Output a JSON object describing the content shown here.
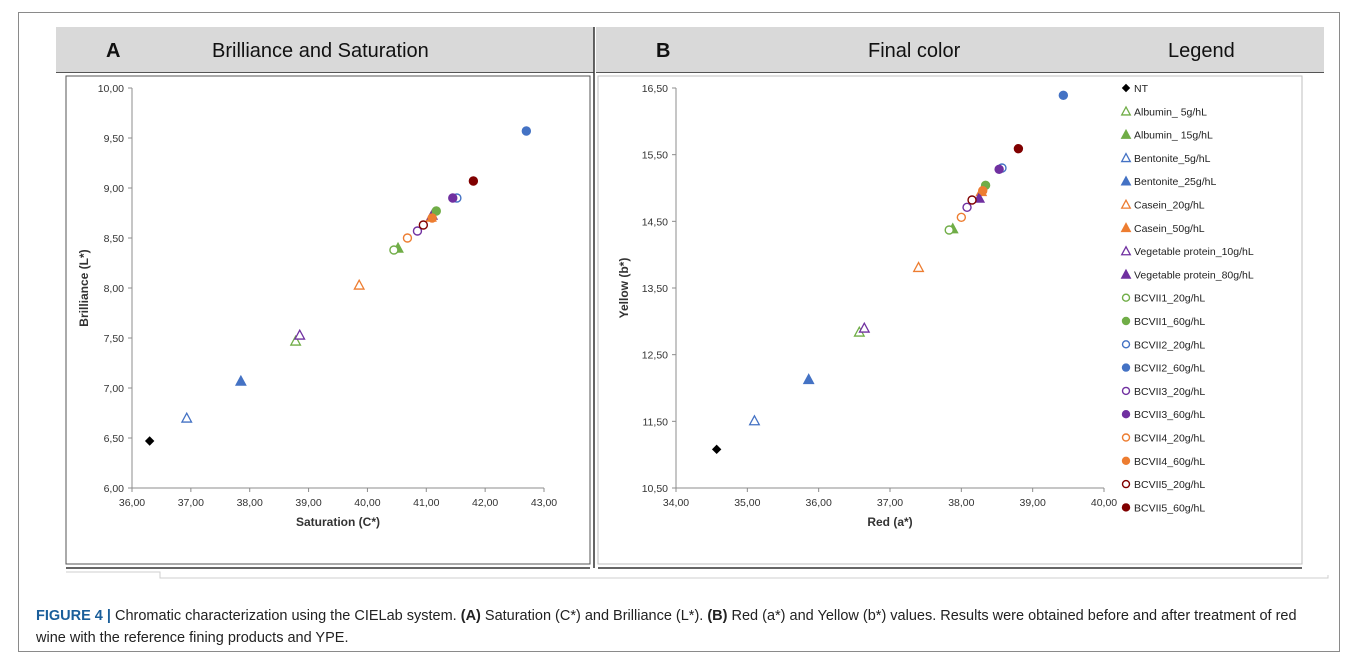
{
  "panel_a": {
    "letter": "A",
    "title": "Brilliance and Saturation"
  },
  "panel_b": {
    "letter": "B",
    "title": "Final color",
    "legend_title": "Legend"
  },
  "caption": {
    "label": "FIGURE 4 |",
    "text_1": " Chromatic characterization using the CIELab system. ",
    "a_ref": "(A)",
    "text_2": " Saturation (C*) and Brilliance (L*). ",
    "b_ref": "(B)",
    "text_3": " Red (a*) and Yellow (b*) values. Results were obtained before and after treatment of red wine with the reference fining products and YPE."
  },
  "colors": {
    "black": "#000000",
    "green": "#70ad47",
    "blue": "#4472c4",
    "orange": "#ed7d31",
    "purple": "#7030a0",
    "dark_red": "#800000",
    "header_bg": "#d9d9d9"
  },
  "chart_data": [
    {
      "type": "scatter",
      "panel": "A",
      "xlabel": "Saturation (C*)",
      "ylabel": "Brilliance (L*)",
      "xlim": [
        36,
        43
      ],
      "ylim": [
        6,
        10
      ],
      "xticks": [
        "36,00",
        "37,00",
        "38,00",
        "39,00",
        "40,00",
        "41,00",
        "42,00",
        "43,00"
      ],
      "yticks": [
        "6,00",
        "6,50",
        "7,00",
        "7,50",
        "8,00",
        "8,50",
        "9,00",
        "9,50",
        "10,00"
      ],
      "series": [
        {
          "name": "NT",
          "x": 36.3,
          "y": 6.47
        },
        {
          "name": "Albumin_ 5g/hL",
          "x": 38.78,
          "y": 7.47
        },
        {
          "name": "Albumin_ 15g/hL",
          "x": 40.52,
          "y": 8.4
        },
        {
          "name": "Bentonite_5g/hL",
          "x": 36.93,
          "y": 6.7
        },
        {
          "name": "Bentonite_25g/hL",
          "x": 37.85,
          "y": 7.07
        },
        {
          "name": "Casein_20g/hL",
          "x": 39.86,
          "y": 8.03
        },
        {
          "name": "Casein_50g/hL",
          "x": 41.08,
          "y": 8.71
        },
        {
          "name": "Vegetable protein_10g/hL",
          "x": 38.85,
          "y": 7.53
        },
        {
          "name": "Vegetable protein_80g/hL",
          "x": 41.1,
          "y": 8.73
        },
        {
          "name": "BCVII1_20g/hL",
          "x": 40.45,
          "y": 8.38
        },
        {
          "name": "BCVII1_60g/hL",
          "x": 41.17,
          "y": 8.77
        },
        {
          "name": "BCVII2_20g/hL",
          "x": 41.52,
          "y": 8.9
        },
        {
          "name": "BCVII2_60g/hL",
          "x": 42.7,
          "y": 9.57
        },
        {
          "name": "BCVII3_20g/hL",
          "x": 40.85,
          "y": 8.57
        },
        {
          "name": "BCVII3_60g/hL",
          "x": 41.45,
          "y": 8.9
        },
        {
          "name": "BCVII4_20g/hL",
          "x": 40.68,
          "y": 8.5
        },
        {
          "name": "BCVII4_60g/hL",
          "x": 41.1,
          "y": 8.7
        },
        {
          "name": "BCVII5_20g/hL",
          "x": 40.95,
          "y": 8.63
        },
        {
          "name": "BCVII5_60g/hL",
          "x": 41.8,
          "y": 9.07
        }
      ]
    },
    {
      "type": "scatter",
      "panel": "B",
      "xlabel": "Red (a*)",
      "ylabel": "Yellow (b*)",
      "xlim": [
        34,
        40
      ],
      "ylim": [
        10.5,
        16.5
      ],
      "xticks": [
        "34,00",
        "35,00",
        "36,00",
        "37,00",
        "38,00",
        "39,00",
        "40,00"
      ],
      "yticks": [
        "10,50",
        "11,50",
        "12,50",
        "13,50",
        "14,50",
        "15,50",
        "16,50"
      ],
      "series": [
        {
          "name": "NT",
          "x": 34.57,
          "y": 11.08
        },
        {
          "name": "Albumin_ 5g/hL",
          "x": 36.57,
          "y": 12.84
        },
        {
          "name": "Albumin_ 15g/hL",
          "x": 37.88,
          "y": 14.39
        },
        {
          "name": "Bentonite_5g/hL",
          "x": 35.1,
          "y": 11.51
        },
        {
          "name": "Bentonite_25g/hL",
          "x": 35.86,
          "y": 12.13
        },
        {
          "name": "Casein_20g/hL",
          "x": 37.4,
          "y": 13.81
        },
        {
          "name": "Casein_50g/hL",
          "x": 38.28,
          "y": 14.95
        },
        {
          "name": "Vegetable protein_10g/hL",
          "x": 36.64,
          "y": 12.9
        },
        {
          "name": "Vegetable protein_80g/hL",
          "x": 38.25,
          "y": 14.85
        },
        {
          "name": "BCVII1_20g/hL",
          "x": 37.83,
          "y": 14.37
        },
        {
          "name": "BCVII1_60g/hL",
          "x": 38.34,
          "y": 15.04
        },
        {
          "name": "BCVII2_20g/hL",
          "x": 38.57,
          "y": 15.3
        },
        {
          "name": "BCVII2_60g/hL",
          "x": 39.43,
          "y": 16.39
        },
        {
          "name": "BCVII3_20g/hL",
          "x": 38.08,
          "y": 14.71
        },
        {
          "name": "BCVII3_60g/hL",
          "x": 38.53,
          "y": 15.28
        },
        {
          "name": "BCVII4_20g/hL",
          "x": 38.0,
          "y": 14.56
        },
        {
          "name": "BCVII4_60g/hL",
          "x": 38.3,
          "y": 14.96
        },
        {
          "name": "BCVII5_20g/hL",
          "x": 38.15,
          "y": 14.82
        },
        {
          "name": "BCVII5_60g/hL",
          "x": 38.8,
          "y": 15.59
        }
      ]
    }
  ],
  "legend": [
    {
      "label": "NT",
      "color": "#000000",
      "marker": "diamond",
      "filled": true
    },
    {
      "label": "Albumin_ 5g/hL",
      "color": "#70ad47",
      "marker": "triangle",
      "filled": false
    },
    {
      "label": "Albumin_ 15g/hL",
      "color": "#70ad47",
      "marker": "triangle",
      "filled": true
    },
    {
      "label": "Bentonite_5g/hL",
      "color": "#4472c4",
      "marker": "triangle",
      "filled": false
    },
    {
      "label": "Bentonite_25g/hL",
      "color": "#4472c4",
      "marker": "triangle",
      "filled": true
    },
    {
      "label": "Casein_20g/hL",
      "color": "#ed7d31",
      "marker": "triangle",
      "filled": false
    },
    {
      "label": "Casein_50g/hL",
      "color": "#ed7d31",
      "marker": "triangle",
      "filled": true
    },
    {
      "label": "Vegetable protein_10g/hL",
      "color": "#7030a0",
      "marker": "triangle",
      "filled": false
    },
    {
      "label": "Vegetable protein_80g/hL",
      "color": "#7030a0",
      "marker": "triangle",
      "filled": true
    },
    {
      "label": "BCVII1_20g/hL",
      "color": "#70ad47",
      "marker": "circle",
      "filled": false
    },
    {
      "label": "BCVII1_60g/hL",
      "color": "#70ad47",
      "marker": "circle",
      "filled": true
    },
    {
      "label": "BCVII2_20g/hL",
      "color": "#4472c4",
      "marker": "circle",
      "filled": false
    },
    {
      "label": "BCVII2_60g/hL",
      "color": "#4472c4",
      "marker": "circle",
      "filled": true
    },
    {
      "label": "BCVII3_20g/hL",
      "color": "#7030a0",
      "marker": "circle",
      "filled": false
    },
    {
      "label": "BCVII3_60g/hL",
      "color": "#7030a0",
      "marker": "circle",
      "filled": true
    },
    {
      "label": "BCVII4_20g/hL",
      "color": "#ed7d31",
      "marker": "circle",
      "filled": false
    },
    {
      "label": "BCVII4_60g/hL",
      "color": "#ed7d31",
      "marker": "circle",
      "filled": true
    },
    {
      "label": "BCVII5_20g/hL",
      "color": "#800000",
      "marker": "circle",
      "filled": false
    },
    {
      "label": "BCVII5_60g/hL",
      "color": "#800000",
      "marker": "circle",
      "filled": true
    }
  ]
}
